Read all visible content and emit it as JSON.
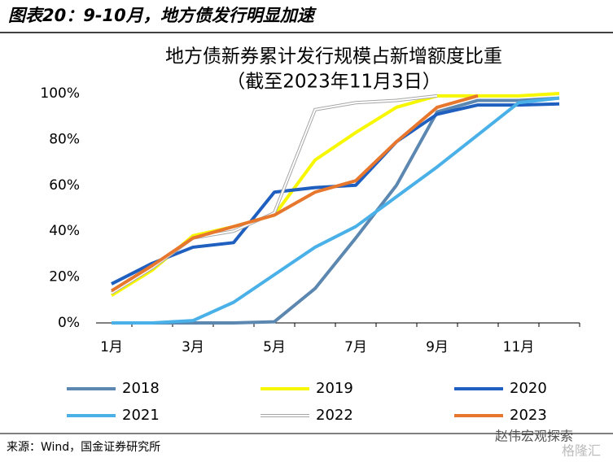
{
  "header": {
    "title": "图表20：9-10月，地方债发行明显加速"
  },
  "chart_data": {
    "type": "line",
    "title": "地方债新券累计发行规模占新增额度比重",
    "subtitle": "（截至2023年11月3日）",
    "categories": [
      "1月",
      null,
      "3月",
      null,
      "5月",
      null,
      "7月",
      null,
      "9月",
      null,
      "11月",
      null
    ],
    "series": [
      {
        "name": "2018",
        "color": "#5b87b0",
        "values": [
          0,
          0,
          0,
          0,
          0.5,
          15,
          37,
          60,
          92,
          97,
          97,
          98
        ]
      },
      {
        "name": "2019",
        "color": "#f7f700",
        "values": [
          12,
          23,
          38,
          42,
          47,
          71,
          83,
          94,
          99,
          99,
          99,
          100
        ]
      },
      {
        "name": "2020",
        "color": "#1f5fbf",
        "values": [
          17,
          26,
          33,
          35,
          57,
          59,
          60,
          79,
          91,
          95,
          95,
          95.5
        ]
      },
      {
        "name": "2021",
        "color": "#4ab0e8",
        "values": [
          0,
          0,
          1,
          9,
          21,
          33,
          42,
          55,
          68,
          82,
          96,
          98
        ]
      },
      {
        "name": "2022",
        "color": "#a6a6a6",
        "values": [
          13,
          24,
          37,
          40,
          48,
          93,
          96,
          97,
          99,
          null,
          null,
          null
        ]
      },
      {
        "name": "2023",
        "color": "#e8772e",
        "values": [
          14,
          25,
          37,
          42,
          47,
          57,
          62,
          79,
          94,
          99,
          null,
          null
        ]
      }
    ],
    "ylim": [
      0,
      100
    ],
    "yticks": [
      {
        "value": 0,
        "label": "0%"
      },
      {
        "value": 20,
        "label": "20%"
      },
      {
        "value": 40,
        "label": "40%"
      },
      {
        "value": 60,
        "label": "60%"
      },
      {
        "value": 80,
        "label": "80%"
      },
      {
        "value": 100,
        "label": "100%"
      }
    ],
    "legend": "bottom"
  },
  "source": "来源：Wind，国金证券研究所",
  "watermark": [
    "赵伟宏观探索",
    "格隆汇"
  ]
}
